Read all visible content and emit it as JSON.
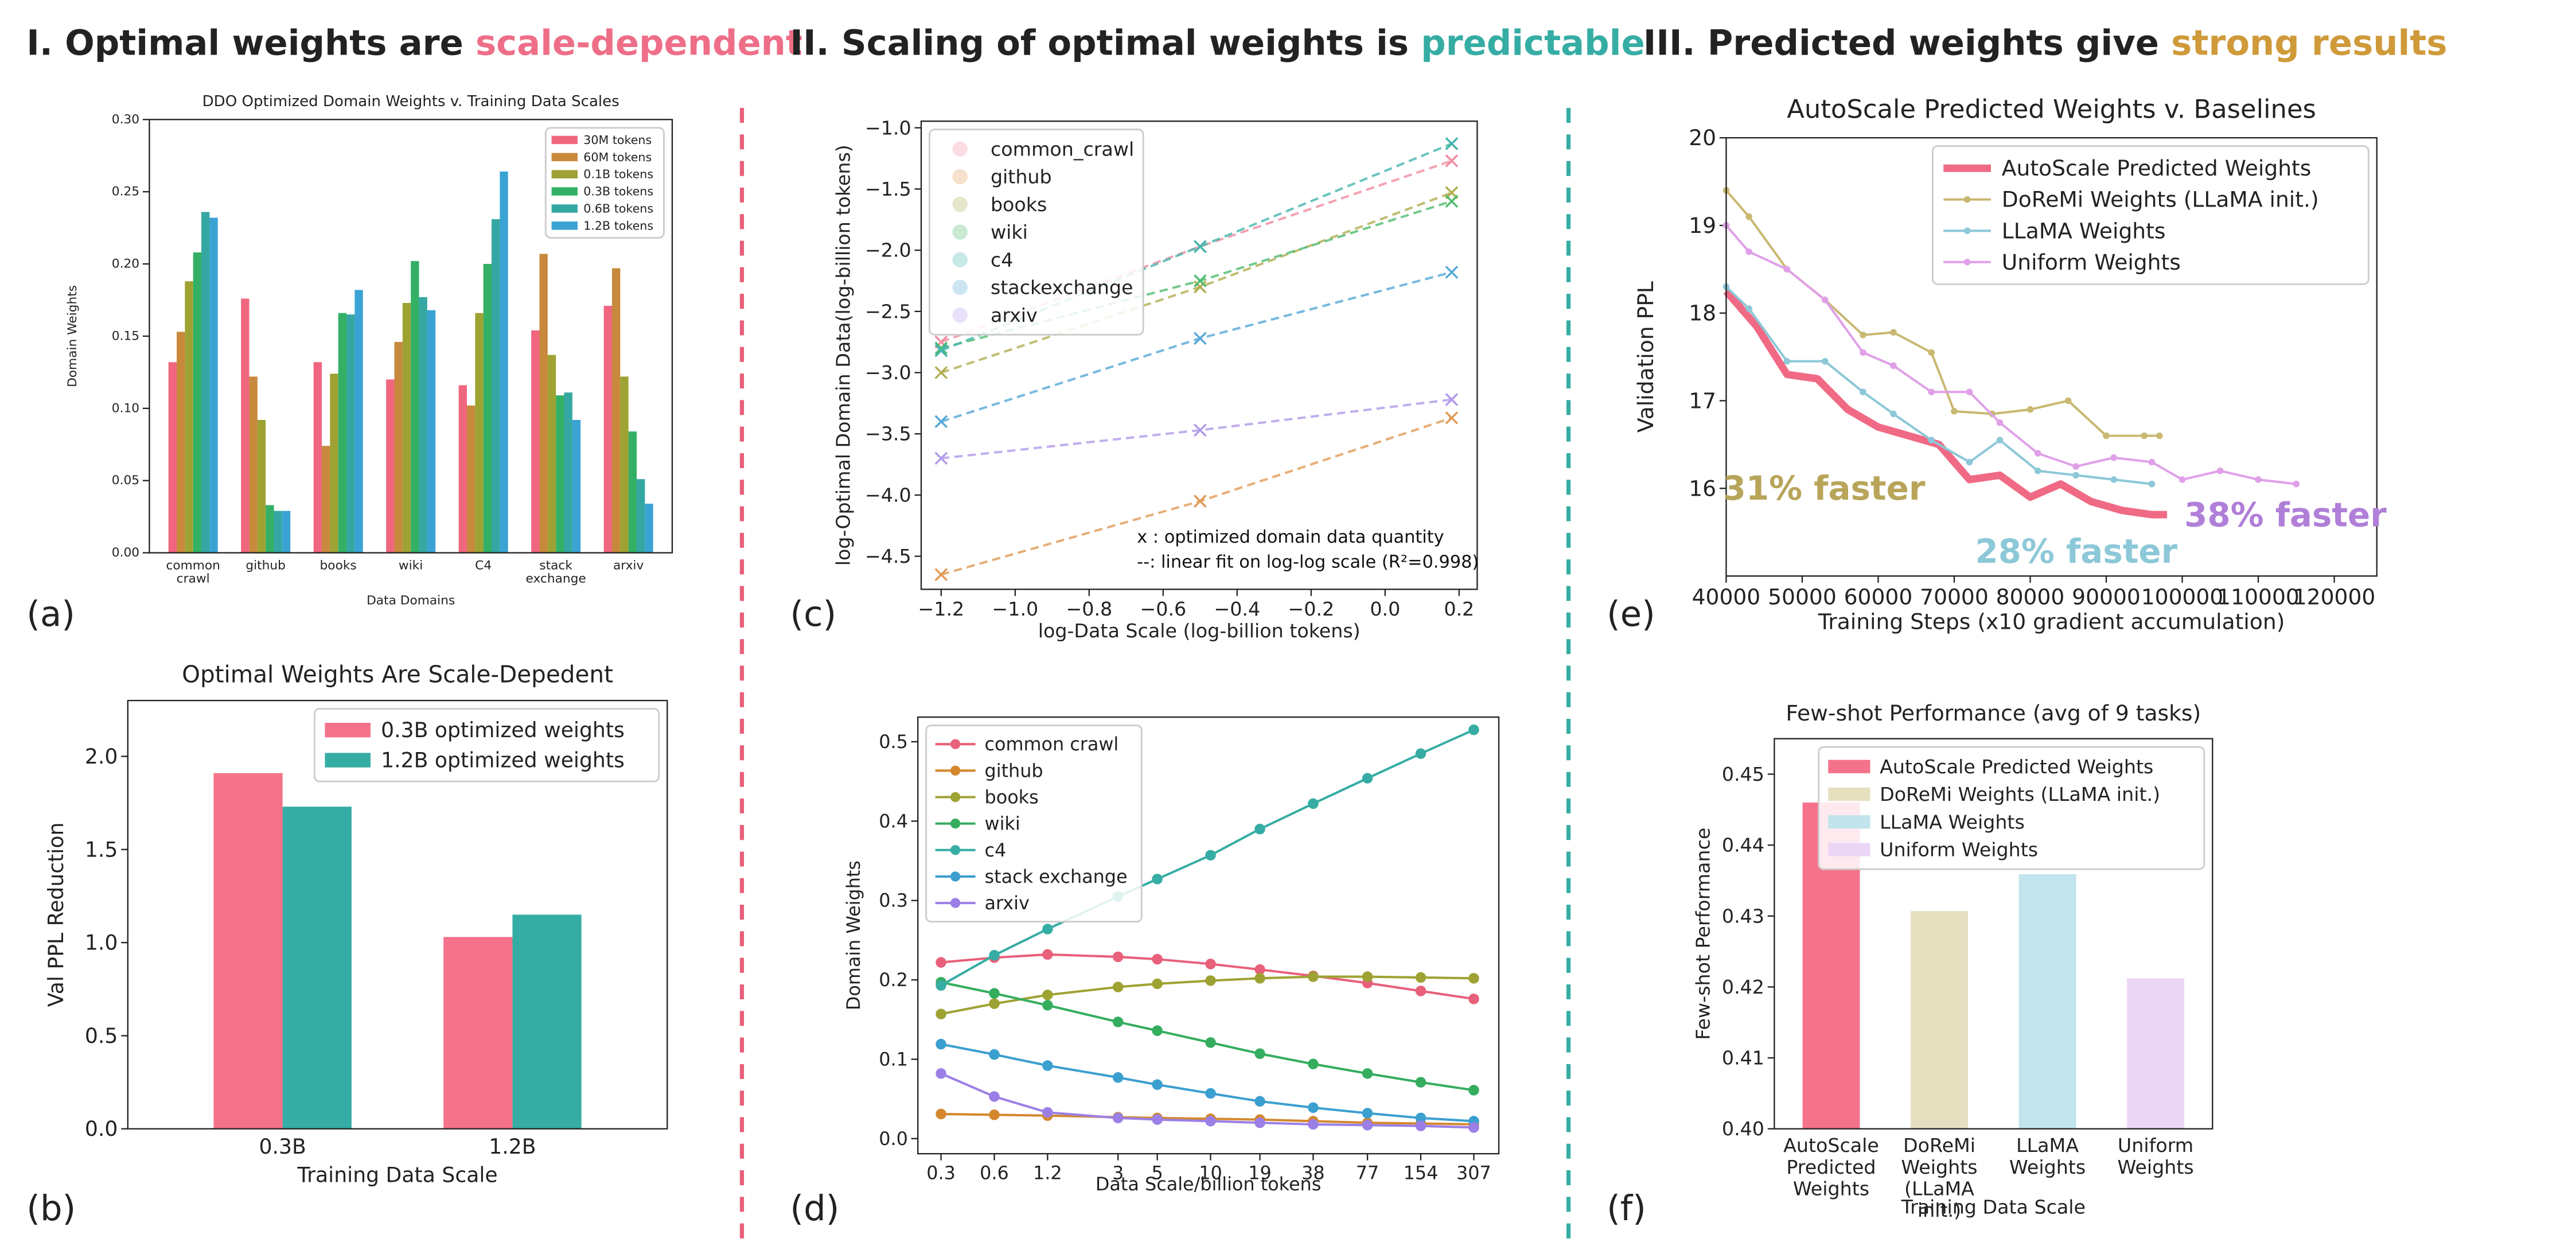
{
  "headers": [
    {
      "text": "I. Optimal weights are ",
      "highlight": "scale-dependent",
      "color": "#ee6e88"
    },
    {
      "text": "II. Scaling of optimal weights is ",
      "highlight": "predictable",
      "color": "#36ada4"
    },
    {
      "text": "III. Predicted weights give ",
      "highlight": "strong results",
      "color": "#cf9a3a"
    }
  ],
  "panel_labels": [
    "(a)",
    "(b)",
    "(c)",
    "(d)",
    "(e)",
    "(f)"
  ],
  "chart_data": [
    {
      "type": "bar",
      "title": "DDO Optimized Domain Weights v. Training Data Scales",
      "xlabel": "Data Domains",
      "ylabel": "Domain Weights",
      "categories": [
        "common crawl",
        "github",
        "books",
        "wiki",
        "C4",
        "stack exchange",
        "arxiv"
      ],
      "series": [
        {
          "name": "30M tokens",
          "color": "#f0667f",
          "values": [
            0.132,
            0.176,
            0.132,
            0.12,
            0.116,
            0.154,
            0.171
          ]
        },
        {
          "name": "60M tokens",
          "color": "#c8893c",
          "values": [
            0.153,
            0.122,
            0.074,
            0.146,
            0.102,
            0.207,
            0.197
          ]
        },
        {
          "name": "0.1B tokens",
          "color": "#9ea232",
          "values": [
            0.188,
            0.092,
            0.124,
            0.173,
            0.166,
            0.137,
            0.122
          ]
        },
        {
          "name": "0.3B tokens",
          "color": "#33b065",
          "values": [
            0.208,
            0.033,
            0.166,
            0.202,
            0.2,
            0.109,
            0.084
          ]
        },
        {
          "name": "0.6B tokens",
          "color": "#35a7a3",
          "values": [
            0.236,
            0.029,
            0.165,
            0.177,
            0.231,
            0.111,
            0.051
          ]
        },
        {
          "name": "1.2B tokens",
          "color": "#3ba3d4",
          "values": [
            0.232,
            0.029,
            0.182,
            0.168,
            0.264,
            0.092,
            0.034
          ]
        }
      ],
      "ylim": [
        0,
        0.3
      ],
      "yticks": [
        {
          "value": 0,
          "label": "0.00"
        },
        0.05,
        {
          "value": 0.1,
          "label": "0.10"
        },
        0.15,
        {
          "value": 0.2,
          "label": "0.20"
        },
        0.25,
        {
          "value": 0.3,
          "label": "0.30"
        }
      ],
      "legend": "upper right"
    },
    {
      "type": "bar",
      "title": "Optimal Weights Are Scale-Depedent",
      "xlabel": "Training Data Scale",
      "ylabel": "Val PPL Reduction",
      "categories": [
        "0.3B",
        "1.2B"
      ],
      "series": [
        {
          "name": "0.3B optimized weights",
          "color": "#f4728a",
          "values": [
            1.91,
            1.03
          ]
        },
        {
          "name": "1.2B optimized weights",
          "color": "#36ada4",
          "values": [
            1.73,
            1.15
          ]
        }
      ],
      "ylim": [
        0,
        2.3
      ],
      "yticks": [
        {
          "value": 0,
          "label": "0.0"
        },
        0.5,
        {
          "value": 1,
          "label": "1.0"
        },
        1.5,
        {
          "value": 2,
          "label": "2.0"
        }
      ],
      "legend": "upper right"
    },
    {
      "type": "line",
      "xlabel": "log-Data Scale (log-billion tokens)",
      "ylabel": "log-Optimal Domain Data(log-billion tokens)",
      "x": [
        -1.2,
        -0.5,
        0.18
      ],
      "marker": "x",
      "linestyle": "dashed",
      "series": [
        {
          "name": "common_crawl",
          "color": "#f08ca0",
          "values": [
            -2.75,
            -1.97,
            -1.27
          ]
        },
        {
          "name": "github",
          "color": "#e09a55",
          "values": [
            -4.65,
            -4.05,
            -3.37
          ]
        },
        {
          "name": "books",
          "color": "#b0ad50",
          "values": [
            -3.0,
            -2.3,
            -1.53
          ]
        },
        {
          "name": "wiki",
          "color": "#4fbb70",
          "values": [
            -2.8,
            -2.25,
            -1.6
          ]
        },
        {
          "name": "c4",
          "color": "#45b5ad",
          "values": [
            -2.82,
            -1.97,
            -1.13
          ]
        },
        {
          "name": "stackexchange",
          "color": "#55a8d6",
          "values": [
            -3.4,
            -2.72,
            -2.18
          ]
        },
        {
          "name": "arxiv",
          "color": "#b29ae8",
          "values": [
            -3.7,
            -3.47,
            -3.22
          ]
        }
      ],
      "xlim": [
        -1.254,
        0.249
      ],
      "xticks": [
        {
          "value": -1.2,
          "label": "−1.2"
        },
        {
          "value": -1,
          "label": "−1.0"
        },
        {
          "value": -0.8,
          "label": "−0.8"
        },
        {
          "value": -0.6,
          "label": "−0.6"
        },
        {
          "value": -0.4,
          "label": "−0.4"
        },
        {
          "value": -0.2,
          "label": "−0.2"
        },
        {
          "value": 0,
          "label": "0.0"
        },
        0.2
      ],
      "ylim": [
        -4.77,
        -0.946
      ],
      "yticks": [
        {
          "value": -4.5,
          "label": "−4.5"
        },
        {
          "value": -4,
          "label": "−4.0"
        },
        {
          "value": -3.5,
          "label": "−3.5"
        },
        {
          "value": -3,
          "label": "−3.0"
        },
        {
          "value": -2.5,
          "label": "−2.5"
        },
        {
          "value": -2,
          "label": "−2.0"
        },
        {
          "value": -1.5,
          "label": "−1.5"
        },
        {
          "value": -1,
          "label": "−1.0"
        }
      ],
      "annotations": [
        {
          "text": "x : optimized domain data quantity",
          "color": "#111"
        },
        {
          "text": "--: linear fit on log-log scale (R²=0.998)",
          "color": "#111"
        }
      ],
      "legend": "upper left"
    },
    {
      "type": "line",
      "xlabel": "Data Scale/billion tokens",
      "ylabel": "Domain Weights",
      "xscale": "log",
      "marker": "o",
      "x": [
        0.3,
        0.6,
        1.2,
        3,
        5,
        10,
        19,
        38,
        77,
        154,
        307
      ],
      "series": [
        {
          "name": "common crawl",
          "color": "#e8607a",
          "values": [
            0.222,
            0.228,
            0.232,
            0.229,
            0.226,
            0.22,
            0.213,
            0.205,
            0.196,
            0.186,
            0.176
          ]
        },
        {
          "name": "github",
          "color": "#d4882e",
          "values": [
            0.031,
            0.03,
            0.029,
            0.027,
            0.026,
            0.025,
            0.024,
            0.022,
            0.02,
            0.019,
            0.018
          ]
        },
        {
          "name": "books",
          "color": "#9ea232",
          "values": [
            0.157,
            0.17,
            0.181,
            0.191,
            0.195,
            0.199,
            0.202,
            0.204,
            0.204,
            0.203,
            0.202
          ]
        },
        {
          "name": "wiki",
          "color": "#35ad5f",
          "values": [
            0.197,
            0.183,
            0.168,
            0.147,
            0.136,
            0.121,
            0.107,
            0.094,
            0.082,
            0.071,
            0.061
          ]
        },
        {
          "name": "c4",
          "color": "#36ada4",
          "values": [
            0.193,
            0.231,
            0.264,
            0.305,
            0.327,
            0.357,
            0.39,
            0.422,
            0.454,
            0.485,
            0.515
          ]
        },
        {
          "name": "stack exchange",
          "color": "#3b9fd0",
          "values": [
            0.119,
            0.106,
            0.092,
            0.077,
            0.068,
            0.057,
            0.047,
            0.039,
            0.032,
            0.026,
            0.022
          ]
        },
        {
          "name": "arxiv",
          "color": "#9b7fe6",
          "values": [
            0.082,
            0.053,
            0.033,
            0.026,
            0.024,
            0.022,
            0.02,
            0.018,
            0.017,
            0.016,
            0.014
          ]
        }
      ],
      "xlim": [
        0.222,
        425
      ],
      "xticks": [
        0.3,
        0.6,
        1.2,
        3,
        5,
        10,
        19,
        38,
        77,
        154,
        307
      ],
      "ylim": [
        -0.019,
        0.531
      ],
      "yticks": [
        {
          "value": 0,
          "label": "0.0"
        },
        0.1,
        0.2,
        0.3,
        0.4,
        0.5
      ],
      "legend": "upper left"
    },
    {
      "type": "line",
      "title": "AutoScale Predicted Weights v. Baselines",
      "xlabel": "Training Steps (x10 gradient accumulation)",
      "ylabel": "Validation PPL",
      "marker": "o",
      "series": [
        {
          "name": "AutoScale Predicted Weights",
          "color": "#f06a85",
          "x": [
            40000,
            44000,
            48000,
            52000,
            56000,
            60000,
            64000,
            68000,
            72000,
            76000,
            80000,
            84000,
            88000,
            92000,
            96000,
            98000
          ],
          "values": [
            18.25,
            17.85,
            17.3,
            17.25,
            16.9,
            16.7,
            16.6,
            16.5,
            16.1,
            16.15,
            15.9,
            16.05,
            15.85,
            15.75,
            15.7,
            15.7
          ]
        },
        {
          "name": "DoReMi Weights (LLaMA init.)",
          "color": "#c9b872",
          "x": [
            40000,
            43000,
            48000,
            53000,
            58000,
            62000,
            67000,
            70000,
            75000,
            80000,
            85000,
            90000,
            95000,
            97000
          ],
          "values": [
            19.4,
            19.1,
            18.5,
            18.15,
            17.75,
            17.78,
            17.55,
            16.88,
            16.85,
            16.9,
            17.0,
            16.6,
            16.6,
            16.6
          ]
        },
        {
          "name": "LLaMA Weights",
          "color": "#8cc8d8",
          "x": [
            40000,
            43000,
            48000,
            53000,
            58000,
            62000,
            67000,
            72000,
            76000,
            81000,
            86000,
            91000,
            96000
          ],
          "values": [
            18.3,
            18.05,
            17.45,
            17.45,
            17.1,
            16.85,
            16.55,
            16.3,
            16.55,
            16.2,
            16.15,
            16.1,
            16.05
          ]
        },
        {
          "name": "Uniform Weights",
          "color": "#e0a0e8",
          "x": [
            40000,
            43000,
            48000,
            53000,
            58000,
            62000,
            67000,
            72000,
            76000,
            81000,
            86000,
            91000,
            96000,
            100000,
            105000,
            110000,
            115000
          ],
          "values": [
            19.0,
            18.7,
            18.5,
            18.15,
            17.55,
            17.4,
            17.1,
            17.1,
            16.75,
            16.4,
            16.25,
            16.35,
            16.3,
            16.1,
            16.2,
            16.1,
            16.05
          ]
        }
      ],
      "xlim": [
        40000,
        125600
      ],
      "xticks": [
        40000,
        50000,
        60000,
        70000,
        80000,
        90000,
        100000,
        110000,
        120000
      ],
      "ylim": [
        15,
        20
      ],
      "yticks": [
        16,
        17,
        18,
        19,
        20
      ],
      "annotations": [
        {
          "text": "31% faster",
          "color": "#b8a55a"
        },
        {
          "text": "28% faster",
          "color": "#8cc8d8"
        },
        {
          "text": "38% faster",
          "color": "#b07fd8"
        }
      ],
      "legend": "upper right"
    },
    {
      "type": "bar",
      "title": "Few-shot Performance (avg of 9 tasks)",
      "xlabel": "Training Data Scale",
      "ylabel": "Few-shot Performance",
      "categories": [
        "AutoScale Predicted Weights",
        "DoReMi Weights (LLaMA init.)",
        "LLaMA Weights",
        "Uniform Weights"
      ],
      "values": [
        0.446,
        0.4307,
        0.4359,
        0.4212
      ],
      "colors": [
        "#f4728a",
        "#e6dfc0",
        "#c2e4ec",
        "#ecd6f6"
      ],
      "ylim": [
        0.4,
        0.455
      ],
      "yticks": [
        {
          "value": 0.4,
          "label": "0.40"
        },
        0.41,
        0.42,
        0.43,
        0.44,
        0.45
      ],
      "legend": "upper right"
    }
  ]
}
